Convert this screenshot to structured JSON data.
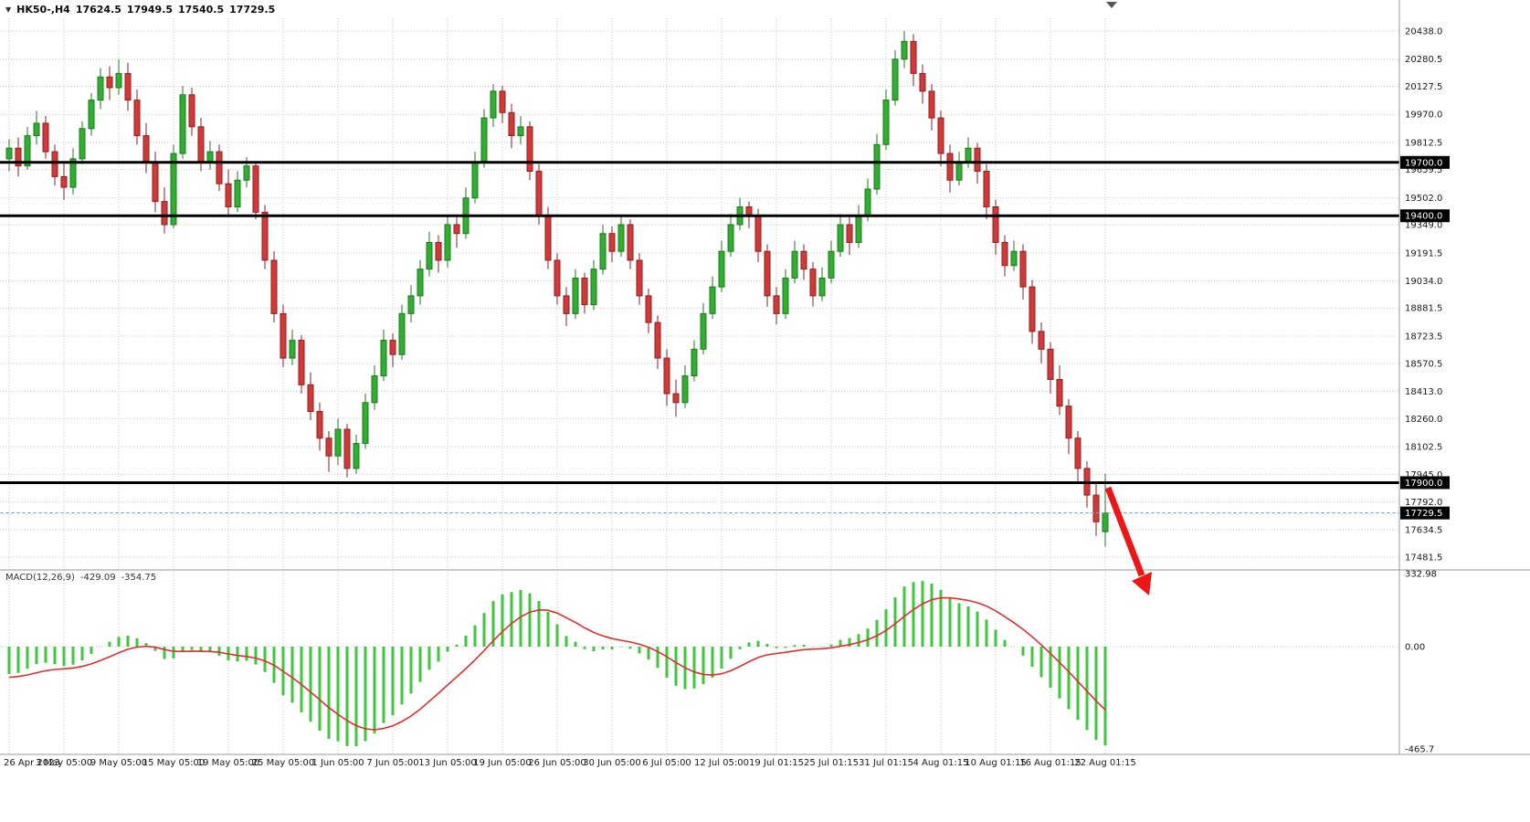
{
  "header": {
    "collapse_icon": "▼",
    "symbol": "HK50-,H4",
    "ohlc": {
      "open": "17624.5",
      "high": "17949.5",
      "low": "17540.5",
      "close": "17729.5"
    }
  },
  "macd_panel": {
    "label": "MACD(12,26,9)",
    "main_value": "-429.09",
    "signal_value": "-354.75"
  },
  "chart_data": {
    "type": "candlestick",
    "symbol": "HK50-",
    "timeframe": "H4",
    "title": "HK50-,H4",
    "price_axis_ticks": [
      "20438.0",
      "20280.5",
      "20127.5",
      "19970.0",
      "19812.5",
      "19659.5",
      "19502.0",
      "19349.0",
      "19191.5",
      "19034.0",
      "18881.5",
      "18723.5",
      "18570.5",
      "18413.0",
      "18260.0",
      "18102.5",
      "17945.0",
      "17792.0",
      "17634.5",
      "17481.5"
    ],
    "horizontal_lines": [
      "19700.0",
      "19400.0",
      "17900.0"
    ],
    "current_price": "17729.5",
    "x_labels": [
      "26 Apr 2023",
      "3 May 05:00",
      "9 May 05:00",
      "15 May 05:00",
      "19 May 05:00",
      "25 May 05:00",
      "1 Jun 05:00",
      "7 Jun 05:00",
      "13 Jun 05:00",
      "19 Jun 05:00",
      "26 Jun 05:00",
      "30 Jun 05:00",
      "6 Jul 05:00",
      "12 Jul 05:00",
      "19 Jul 01:15",
      "25 Jul 01:15",
      "31 Jul 01:15",
      "4 Aug 01:15",
      "10 Aug 01:15",
      "16 Aug 01:15",
      "22 Aug 01:15"
    ],
    "candles": [
      [
        19720,
        19830,
        19650,
        19780
      ],
      [
        19780,
        19840,
        19620,
        19680
      ],
      [
        19680,
        19900,
        19660,
        19850
      ],
      [
        19850,
        19990,
        19800,
        19920
      ],
      [
        19920,
        19960,
        19720,
        19760
      ],
      [
        19760,
        19800,
        19570,
        19620
      ],
      [
        19620,
        19700,
        19490,
        19560
      ],
      [
        19560,
        19780,
        19520,
        19720
      ],
      [
        19720,
        19930,
        19690,
        19890
      ],
      [
        19890,
        20090,
        19850,
        20050
      ],
      [
        20050,
        20230,
        20000,
        20180
      ],
      [
        20180,
        20240,
        20050,
        20120
      ],
      [
        20120,
        20280,
        20080,
        20200
      ],
      [
        20200,
        20260,
        19990,
        20050
      ],
      [
        20050,
        20110,
        19800,
        19850
      ],
      [
        19850,
        19920,
        19640,
        19700
      ],
      [
        19700,
        19760,
        19420,
        19480
      ],
      [
        19480,
        19560,
        19300,
        19350
      ],
      [
        19350,
        19800,
        19330,
        19750
      ],
      [
        19750,
        20130,
        19720,
        20080
      ],
      [
        20080,
        20120,
        19850,
        19900
      ],
      [
        19900,
        19950,
        19650,
        19700
      ],
      [
        19700,
        19820,
        19660,
        19760
      ],
      [
        19760,
        19800,
        19540,
        19580
      ],
      [
        19580,
        19660,
        19400,
        19450
      ],
      [
        19450,
        19650,
        19420,
        19600
      ],
      [
        19600,
        19730,
        19560,
        19680
      ],
      [
        19680,
        19700,
        19380,
        19420
      ],
      [
        19420,
        19460,
        19100,
        19150
      ],
      [
        19150,
        19200,
        18800,
        18850
      ],
      [
        18850,
        18900,
        18550,
        18600
      ],
      [
        18600,
        18760,
        18560,
        18700
      ],
      [
        18700,
        18730,
        18400,
        18450
      ],
      [
        18450,
        18520,
        18250,
        18300
      ],
      [
        18300,
        18350,
        18080,
        18150
      ],
      [
        18150,
        18190,
        17960,
        18050
      ],
      [
        18050,
        18260,
        18000,
        18200
      ],
      [
        18200,
        18230,
        17930,
        17980
      ],
      [
        17980,
        18170,
        17950,
        18120
      ],
      [
        18120,
        18400,
        18090,
        18350
      ],
      [
        18350,
        18560,
        18310,
        18500
      ],
      [
        18500,
        18760,
        18470,
        18700
      ],
      [
        18700,
        18740,
        18550,
        18620
      ],
      [
        18620,
        18900,
        18590,
        18850
      ],
      [
        18850,
        19010,
        18800,
        18950
      ],
      [
        18950,
        19150,
        18900,
        19100
      ],
      [
        19100,
        19310,
        19060,
        19250
      ],
      [
        19250,
        19290,
        19080,
        19150
      ],
      [
        19150,
        19400,
        19110,
        19350
      ],
      [
        19350,
        19390,
        19220,
        19300
      ],
      [
        19300,
        19560,
        19270,
        19500
      ],
      [
        19500,
        19760,
        19470,
        19700
      ],
      [
        19700,
        20000,
        19670,
        19950
      ],
      [
        19950,
        20140,
        19900,
        20100
      ],
      [
        20100,
        20130,
        19920,
        19980
      ],
      [
        19980,
        20030,
        19780,
        19850
      ],
      [
        19850,
        19960,
        19800,
        19900
      ],
      [
        19900,
        19930,
        19600,
        19650
      ],
      [
        19650,
        19690,
        19350,
        19400
      ],
      [
        19400,
        19450,
        19100,
        19150
      ],
      [
        19150,
        19190,
        18900,
        18950
      ],
      [
        18950,
        19000,
        18780,
        18850
      ],
      [
        18850,
        19100,
        18820,
        19050
      ],
      [
        19050,
        19080,
        18850,
        18900
      ],
      [
        18900,
        19150,
        18870,
        19100
      ],
      [
        19100,
        19350,
        19070,
        19300
      ],
      [
        19300,
        19340,
        19140,
        19200
      ],
      [
        19200,
        19400,
        19170,
        19350
      ],
      [
        19350,
        19380,
        19100,
        19150
      ],
      [
        19150,
        19190,
        18900,
        18950
      ],
      [
        18950,
        18990,
        18740,
        18800
      ],
      [
        18800,
        18840,
        18540,
        18600
      ],
      [
        18600,
        18650,
        18330,
        18400
      ],
      [
        18400,
        18480,
        18270,
        18350
      ],
      [
        18350,
        18560,
        18320,
        18500
      ],
      [
        18500,
        18700,
        18470,
        18650
      ],
      [
        18650,
        18910,
        18620,
        18850
      ],
      [
        18850,
        19060,
        18820,
        19000
      ],
      [
        19000,
        19260,
        18970,
        19200
      ],
      [
        19200,
        19410,
        19170,
        19350
      ],
      [
        19350,
        19500,
        19320,
        19450
      ],
      [
        19450,
        19480,
        19330,
        19400
      ],
      [
        19400,
        19440,
        19140,
        19200
      ],
      [
        19200,
        19240,
        18890,
        18950
      ],
      [
        18950,
        19000,
        18790,
        18850
      ],
      [
        18850,
        19100,
        18820,
        19050
      ],
      [
        19050,
        19260,
        19020,
        19200
      ],
      [
        19200,
        19240,
        19040,
        19100
      ],
      [
        19100,
        19140,
        18890,
        18950
      ],
      [
        18950,
        19110,
        18920,
        19050
      ],
      [
        19050,
        19260,
        19020,
        19200
      ],
      [
        19200,
        19410,
        19170,
        19350
      ],
      [
        19350,
        19390,
        19180,
        19250
      ],
      [
        19250,
        19460,
        19220,
        19400
      ],
      [
        19400,
        19610,
        19370,
        19550
      ],
      [
        19550,
        19860,
        19520,
        19800
      ],
      [
        19800,
        20110,
        19770,
        20050
      ],
      [
        20050,
        20330,
        20020,
        20280
      ],
      [
        20280,
        20438,
        20230,
        20380
      ],
      [
        20380,
        20420,
        20130,
        20200
      ],
      [
        20200,
        20250,
        20030,
        20100
      ],
      [
        20100,
        20140,
        19880,
        19950
      ],
      [
        19950,
        19990,
        19680,
        19750
      ],
      [
        19750,
        19800,
        19530,
        19600
      ],
      [
        19600,
        19760,
        19570,
        19700
      ],
      [
        19700,
        19840,
        19670,
        19780
      ],
      [
        19780,
        19810,
        19580,
        19650
      ],
      [
        19650,
        19690,
        19380,
        19450
      ],
      [
        19450,
        19490,
        19180,
        19250
      ],
      [
        19250,
        19290,
        19060,
        19120
      ],
      [
        19120,
        19260,
        19090,
        19200
      ],
      [
        19200,
        19240,
        18930,
        19000
      ],
      [
        19000,
        19040,
        18680,
        18750
      ],
      [
        18750,
        18800,
        18570,
        18650
      ],
      [
        18650,
        18690,
        18400,
        18480
      ],
      [
        18480,
        18560,
        18280,
        18330
      ],
      [
        18330,
        18370,
        18060,
        18150
      ],
      [
        18150,
        18190,
        17900,
        17980
      ],
      [
        17980,
        18020,
        17760,
        17830
      ],
      [
        17830,
        17900,
        17600,
        17680
      ],
      [
        17624.5,
        17949.5,
        17540.5,
        17729.5
      ]
    ],
    "indicator": {
      "type": "macd",
      "params": [
        12,
        26,
        9
      ],
      "axis_ticks": [
        "332.98",
        "0.00",
        "-465.7"
      ],
      "range": [
        -465.7,
        332.98
      ],
      "current_main": -429.09,
      "current_signal": -354.75
    },
    "annotation": {
      "type": "down-arrow",
      "color": "#ee1515"
    },
    "colors": {
      "up": "#2fae2f",
      "up_border": "#1d7a1d",
      "down": "#d23939",
      "down_border": "#8e1f1f",
      "grid": "#c9c9c9",
      "hline": "#000000",
      "current_price_line": "#7aa5cd",
      "macd_hist": "#3ec63e",
      "macd_signal": "#e02e2e",
      "axis_text": "#1a1a1a",
      "badge_bg": "#000000",
      "badge_text": "#ffffff",
      "arrow": "#ee1515"
    }
  }
}
